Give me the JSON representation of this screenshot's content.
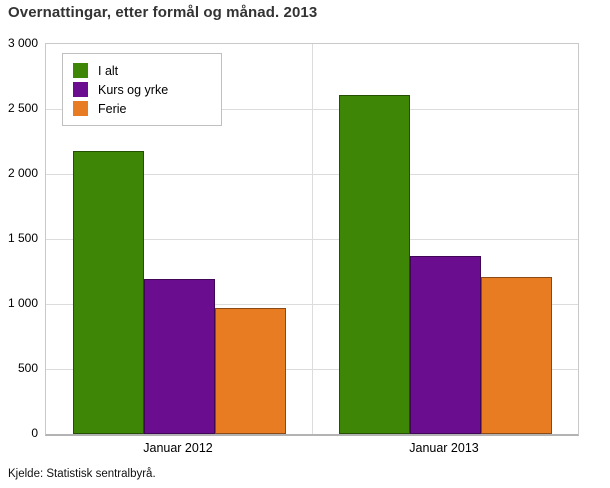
{
  "page": {
    "source": "Kjelde: Statistisk sentralbyrå."
  },
  "chart_data": {
    "type": "bar",
    "title": "Overnattingar, etter formål og månad. 2013",
    "xlabel": "",
    "ylabel": "",
    "categories": [
      "Januar 2012",
      "Januar 2013"
    ],
    "series": [
      {
        "name": "I alt",
        "color": "#3E8606",
        "values": [
          2180,
          2610
        ]
      },
      {
        "name": "Kurs og yrke",
        "color": "#6A0D8F",
        "values": [
          1190,
          1370
        ]
      },
      {
        "name": "Ferie",
        "color": "#E87C23",
        "values": [
          970,
          1210
        ]
      }
    ],
    "ylim": [
      0,
      3000
    ],
    "ytick_interval": 500,
    "ytick_labels": [
      "0",
      "500",
      "1 000",
      "1 500",
      "2 000",
      "2 500",
      "3 000"
    ],
    "grid": true,
    "legend_position": "top-left"
  }
}
